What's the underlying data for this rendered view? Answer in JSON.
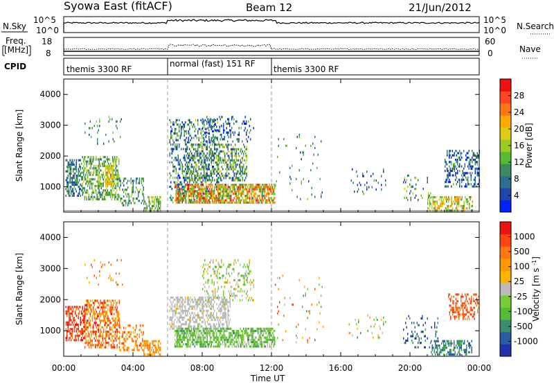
{
  "header": {
    "title": "Syowa East (fitACF)",
    "beam": "Beam 12",
    "date": "21/Jun/2012"
  },
  "nsky_panel": {
    "label": "N.Sky",
    "left_ticks": [
      "10^5",
      "10^0"
    ],
    "right_ticks": [
      "10^5",
      "10^0"
    ],
    "right_label": "N.Search"
  },
  "freq_panel": {
    "label_line1": "Freq.",
    "label_line2": "[MHz]",
    "left_ticks": [
      "18",
      "8"
    ],
    "right_ticks": [
      "60",
      "0"
    ],
    "right_label": "Nave"
  },
  "cpid_panel": {
    "label": "CPID",
    "segments": [
      {
        "label": "themis 3300 RF",
        "start_hour": 0,
        "end_hour": 6
      },
      {
        "label": "normal (fast) 151 RF",
        "start_hour": 6,
        "end_hour": 12
      },
      {
        "label": "themis 3300 RF",
        "start_hour": 12,
        "end_hour": 24
      }
    ]
  },
  "x_axis": {
    "label": "Time UT",
    "range_hours": [
      0,
      24
    ],
    "ticks": [
      {
        "hour": 0,
        "label": "00:00"
      },
      {
        "hour": 4,
        "label": "04:00"
      },
      {
        "hour": 8,
        "label": "08:00"
      },
      {
        "hour": 12,
        "label": "12:00"
      },
      {
        "hour": 16,
        "label": "16:00"
      },
      {
        "hour": 20,
        "label": "20:00"
      },
      {
        "hour": 24,
        "label": "00:00"
      }
    ]
  },
  "chart_data": [
    {
      "type": "heatmap",
      "name": "power",
      "ylabel": "Slant Range [km]",
      "ylim": [
        180,
        4500
      ],
      "y_ticks": [
        1000,
        2000,
        3000,
        4000
      ],
      "colorbar": {
        "label": "Power [dB]",
        "ticks": [
          "4",
          "8",
          "12",
          "16",
          "20",
          "24",
          "28"
        ],
        "colors": [
          "#0022ff",
          "#2244aa",
          "#2e6e8e",
          "#3a8a5a",
          "#55bb33",
          "#99cc22",
          "#ddcc11",
          "#ffaa00",
          "#ff7711",
          "#ff4422",
          "#ee1111"
        ]
      },
      "regions": [
        {
          "t": [
            0.1,
            1.0
          ],
          "r": [
            700,
            1900
          ],
          "density": 0.55,
          "v": [
            0.1,
            0.4
          ]
        },
        {
          "t": [
            1.0,
            3.2
          ],
          "r": [
            600,
            2000
          ],
          "density": 0.5,
          "v": [
            0.2,
            0.6
          ]
        },
        {
          "t": [
            2.4,
            2.9
          ],
          "r": [
            1000,
            1700
          ],
          "density": 0.7,
          "v": [
            0.5,
            0.7
          ]
        },
        {
          "t": [
            3.2,
            4.6
          ],
          "r": [
            400,
            1300
          ],
          "density": 0.35,
          "v": [
            0.1,
            0.5
          ]
        },
        {
          "t": [
            4.6,
            5.6
          ],
          "r": [
            250,
            700
          ],
          "density": 0.6,
          "v": [
            0.2,
            0.6
          ]
        },
        {
          "t": [
            1.2,
            3.4
          ],
          "r": [
            2400,
            3300
          ],
          "density": 0.08,
          "v": [
            0.1,
            0.5
          ]
        },
        {
          "t": [
            6.1,
            9.0
          ],
          "r": [
            500,
            3200
          ],
          "density": 0.3,
          "v": [
            0.0,
            0.5
          ]
        },
        {
          "t": [
            6.4,
            12.2
          ],
          "r": [
            500,
            1100
          ],
          "density": 0.7,
          "v": [
            0.3,
            0.95
          ]
        },
        {
          "t": [
            7.0,
            10.6
          ],
          "r": [
            1200,
            2400
          ],
          "density": 0.45,
          "v": [
            0.1,
            0.6
          ]
        },
        {
          "t": [
            8.0,
            11.0
          ],
          "r": [
            2500,
            3300
          ],
          "density": 0.2,
          "v": [
            0.0,
            0.4
          ]
        },
        {
          "t": [
            12.2,
            15.0
          ],
          "r": [
            600,
            2800
          ],
          "density": 0.03,
          "v": [
            0.1,
            0.5
          ]
        },
        {
          "t": [
            16.4,
            18.6
          ],
          "r": [
            800,
            1600
          ],
          "density": 0.06,
          "v": [
            0.0,
            0.4
          ]
        },
        {
          "t": [
            19.6,
            21.2
          ],
          "r": [
            600,
            1400
          ],
          "density": 0.15,
          "v": [
            0.1,
            0.6
          ]
        },
        {
          "t": [
            21.0,
            23.6
          ],
          "r": [
            250,
            700
          ],
          "density": 0.5,
          "v": [
            0.3,
            0.8
          ]
        },
        {
          "t": [
            22.0,
            24.0
          ],
          "r": [
            1000,
            2200
          ],
          "density": 0.4,
          "v": [
            0.0,
            0.4
          ]
        }
      ]
    },
    {
      "type": "heatmap",
      "name": "velocity",
      "ylabel": "Slant Range [km]",
      "ylim": [
        180,
        4500
      ],
      "y_ticks": [
        1000,
        2000,
        3000,
        4000
      ],
      "colorbar": {
        "label": "Velocity [m s^-1]",
        "ticks": [
          "1000",
          "500",
          "100",
          "25",
          "-25",
          "-100",
          "-500",
          "-1000"
        ],
        "colors": [
          "#2233aa",
          "#2b5ba3",
          "#3a8e6a",
          "#55bb33",
          "#77cc33",
          "#bbbbbb",
          "#ffb300",
          "#ff9900",
          "#ff7711",
          "#ff4411",
          "#ee1111"
        ]
      },
      "regions": [
        {
          "t": [
            0.1,
            1.2
          ],
          "r": [
            700,
            1800
          ],
          "density": 0.55,
          "v": [
            0.75,
            0.98
          ]
        },
        {
          "t": [
            1.2,
            3.2
          ],
          "r": [
            500,
            2000
          ],
          "density": 0.5,
          "v": [
            0.6,
            0.95
          ]
        },
        {
          "t": [
            3.2,
            4.6
          ],
          "r": [
            400,
            1200
          ],
          "density": 0.35,
          "v": [
            0.55,
            0.9
          ]
        },
        {
          "t": [
            4.6,
            5.6
          ],
          "r": [
            250,
            700
          ],
          "density": 0.6,
          "v": [
            0.6,
            0.8
          ]
        },
        {
          "t": [
            1.2,
            3.4
          ],
          "r": [
            2400,
            3300
          ],
          "density": 0.08,
          "v": [
            0.6,
            0.9
          ]
        },
        {
          "t": [
            6.1,
            9.6
          ],
          "r": [
            1100,
            2100
          ],
          "density": 0.5,
          "v": [
            0.45,
            0.55
          ]
        },
        {
          "t": [
            6.4,
            12.2
          ],
          "r": [
            500,
            1100
          ],
          "density": 0.65,
          "v": [
            0.25,
            0.5
          ]
        },
        {
          "t": [
            8.0,
            11.0
          ],
          "r": [
            2000,
            3300
          ],
          "density": 0.2,
          "v": [
            0.3,
            0.6
          ]
        },
        {
          "t": [
            12.2,
            15.0
          ],
          "r": [
            600,
            2800
          ],
          "density": 0.03,
          "v": [
            0.2,
            0.9
          ]
        },
        {
          "t": [
            16.4,
            18.6
          ],
          "r": [
            800,
            1600
          ],
          "density": 0.06,
          "v": [
            0.2,
            0.7
          ]
        },
        {
          "t": [
            19.6,
            21.6
          ],
          "r": [
            500,
            1500
          ],
          "density": 0.15,
          "v": [
            0.0,
            0.3
          ]
        },
        {
          "t": [
            21.2,
            23.6
          ],
          "r": [
            250,
            700
          ],
          "density": 0.5,
          "v": [
            0.1,
            0.3
          ]
        },
        {
          "t": [
            22.2,
            24.0
          ],
          "r": [
            1400,
            2200
          ],
          "density": 0.45,
          "v": [
            0.75,
            0.9
          ]
        }
      ]
    }
  ]
}
